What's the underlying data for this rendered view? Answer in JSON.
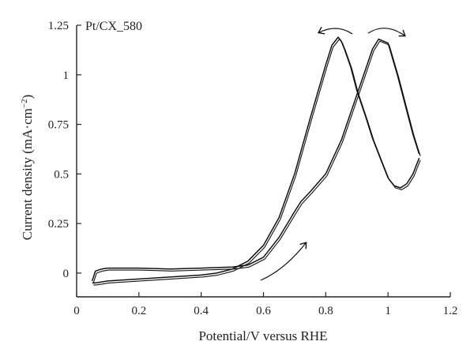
{
  "chart_data": {
    "type": "line",
    "title": "",
    "annotation": "Pt/CX_580",
    "xlabel": "Potential/V versus RHE",
    "ylabel_prefix": "Current density (mA·cm",
    "ylabel_sup": "−2",
    "ylabel_suffix": ")",
    "xlim": [
      0,
      1.2
    ],
    "ylim": [
      -0.12,
      1.25
    ],
    "xticks": [
      0,
      0.2,
      0.4,
      0.6,
      0.8,
      1,
      1.2
    ],
    "xtick_labels": [
      "0",
      "0.2",
      "0.4",
      "0.6",
      "0.8",
      "1",
      "1.2"
    ],
    "yticks": [
      0,
      0.25,
      0.5,
      0.75,
      1,
      1.25
    ],
    "ytick_labels": [
      "0",
      "0.25",
      "0.5",
      "0.75",
      "1",
      "1.25"
    ],
    "grid": false,
    "line_color": "#111111",
    "series": [
      {
        "x": [
          0.05,
          0.06,
          0.08,
          0.1,
          0.2,
          0.3,
          0.4,
          0.5,
          0.55,
          0.6,
          0.65,
          0.7,
          0.72,
          0.75,
          0.8,
          0.85,
          0.9,
          0.95,
          0.97,
          1.0,
          1.03,
          1.06,
          1.08,
          1.1
        ],
        "y": [
          -0.04,
          0.01,
          0.02,
          0.025,
          0.025,
          0.02,
          0.025,
          0.03,
          0.04,
          0.08,
          0.18,
          0.31,
          0.36,
          0.41,
          0.5,
          0.67,
          0.9,
          1.13,
          1.18,
          1.16,
          1.0,
          0.82,
          0.7,
          0.6
        ]
      },
      {
        "x": [
          1.1,
          1.08,
          1.06,
          1.04,
          1.02,
          1.0,
          0.98,
          0.95,
          0.93,
          0.9,
          0.88,
          0.86,
          0.85,
          0.84,
          0.82,
          0.8,
          0.75,
          0.7,
          0.65,
          0.6,
          0.55,
          0.5,
          0.45,
          0.4,
          0.3,
          0.2,
          0.1,
          0.06,
          0.05
        ],
        "y": [
          0.58,
          0.5,
          0.45,
          0.43,
          0.44,
          0.48,
          0.56,
          0.68,
          0.78,
          0.92,
          1.04,
          1.13,
          1.17,
          1.19,
          1.15,
          1.05,
          0.78,
          0.5,
          0.28,
          0.14,
          0.06,
          0.02,
          0.0,
          -0.01,
          -0.02,
          -0.03,
          -0.04,
          -0.05,
          -0.05
        ]
      }
    ]
  }
}
